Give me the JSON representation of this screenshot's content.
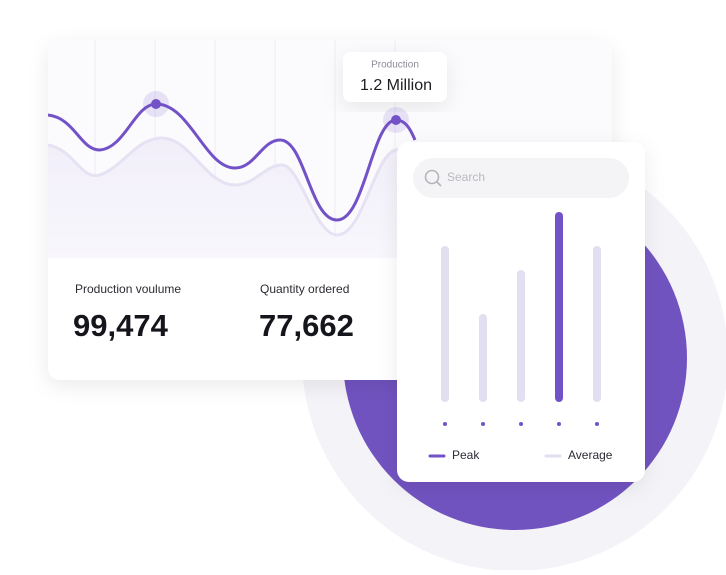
{
  "stats_card": {
    "tooltip": {
      "label": "Production",
      "value": "1.2 Million"
    },
    "metrics": [
      {
        "label": "Production voulume",
        "value": "99,474"
      },
      {
        "label": "Quantity ordered",
        "value": "77,662"
      }
    ]
  },
  "search_placeholder": "Search",
  "chart_data": {
    "type": "bar",
    "series": [
      {
        "name": "Peak",
        "color": "#7352c7",
        "values": [
          null,
          null,
          null,
          182,
          null
        ]
      },
      {
        "name": "Average",
        "color": "#e2dff0",
        "values": [
          148,
          80,
          124,
          null,
          148
        ]
      }
    ]
  }
}
